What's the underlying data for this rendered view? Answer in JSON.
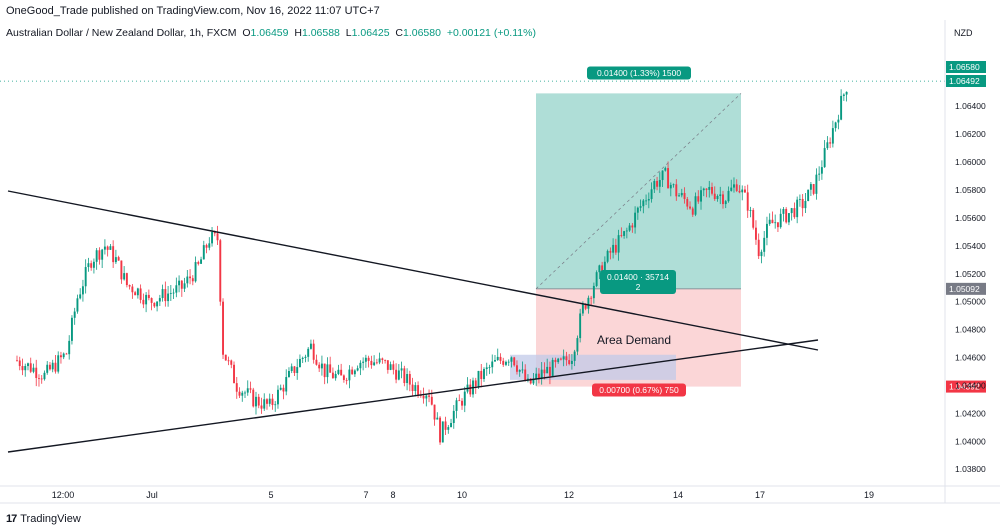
{
  "header": {
    "publisher": "OneGood_Trade published on TradingView.com, Nov 16, 2022 11:07 UTC+7"
  },
  "symbol": {
    "name": "Australian Dollar / New Zealand Dollar, 1h, FXCM",
    "o_label": "O",
    "o_value": "1.06459",
    "h_label": "H",
    "h_value": "1.06588",
    "l_label": "L",
    "l_value": "1.06425",
    "c_label": "C",
    "c_value": "1.06580",
    "change": "+0.00121 (+0.11%)"
  },
  "footer": {
    "brand": "TradingView",
    "logo": "17"
  },
  "colors": {
    "up": "#089981",
    "down": "#f23645",
    "target_zone": "#a6dad3",
    "stop_zone": "#fbd2d3",
    "demand_zone": "#c2cae8",
    "trendline": "#131722",
    "last_price": "#089981",
    "grey_label": "#787b86"
  },
  "chart_data": {
    "type": "candlestick",
    "currency": "NZD",
    "y_ticks": [
      "1.06400",
      "1.06200",
      "1.06000",
      "1.05800",
      "1.05600",
      "1.05400",
      "1.05200",
      "1.05000",
      "1.04800",
      "1.04600",
      "1.04400",
      "1.04200",
      "1.04000",
      "1.03800"
    ],
    "y_tick_values": [
      1.064,
      1.062,
      1.06,
      1.058,
      1.056,
      1.054,
      1.052,
      1.05,
      1.048,
      1.046,
      1.044,
      1.042,
      1.04,
      1.038
    ],
    "ylim": [
      1.0368,
      1.0686
    ],
    "x_ticks": [
      "12:00",
      "Jul",
      "5",
      "7",
      "8",
      "10",
      "12",
      "14",
      "17",
      "19"
    ],
    "price_labels": [
      {
        "text": "1.06580",
        "value": 1.0658,
        "kind": "last"
      },
      {
        "text": "1.06492",
        "value": 1.06492,
        "kind": "entry"
      },
      {
        "text": "1.05092",
        "value": 1.05092,
        "kind": "grey"
      },
      {
        "text": "1.04392",
        "value": 1.04392,
        "kind": "stop"
      }
    ],
    "position": {
      "entry": 1.05092,
      "target": 1.06492,
      "stop": 1.04392,
      "target_label": "0.01400 (1.33%) 1500",
      "stop_label": "0.00700 (0.67%) 750",
      "mid_label_1": "0.01400 · 35714",
      "mid_label_2": "2"
    },
    "demand_zone": {
      "label": "Area Demand",
      "top": 1.0462,
      "bottom": 1.0444
    },
    "trendlines": [
      {
        "name": "descending",
        "from": {
          "bar": 0,
          "price": 1.0572
        },
        "to": {
          "bar": 198,
          "price": 1.0462
        }
      },
      {
        "name": "ascending",
        "from": {
          "bar": 0,
          "price": 1.039
        },
        "to": {
          "bar": 198,
          "price": 1.0469
        }
      }
    ],
    "close_path": [
      [
        0,
        1.0458
      ],
      [
        6,
        1.0452
      ],
      [
        10,
        1.0447
      ],
      [
        14,
        1.0455
      ],
      [
        18,
        1.0463
      ],
      [
        22,
        1.0503
      ],
      [
        27,
        1.053
      ],
      [
        32,
        1.054
      ],
      [
        36,
        1.053
      ],
      [
        40,
        1.0512
      ],
      [
        44,
        1.0508
      ],
      [
        48,
        1.05
      ],
      [
        54,
        1.0505
      ],
      [
        60,
        1.051
      ],
      [
        66,
        1.0525
      ],
      [
        70,
        1.0545
      ],
      [
        73,
        1.0545
      ],
      [
        75,
        1.0465
      ],
      [
        80,
        1.044
      ],
      [
        86,
        1.043
      ],
      [
        92,
        1.0425
      ],
      [
        97,
        1.044
      ],
      [
        102,
        1.0455
      ],
      [
        107,
        1.0468
      ],
      [
        112,
        1.045
      ],
      [
        118,
        1.0445
      ],
      [
        124,
        1.0457
      ],
      [
        128,
        1.0458
      ],
      [
        134,
        1.0455
      ],
      [
        138,
        1.045
      ],
      [
        144,
        1.044
      ],
      [
        150,
        1.0435
      ],
      [
        154,
        1.0405
      ],
      [
        158,
        1.0418
      ],
      [
        162,
        1.043
      ],
      [
        168,
        1.0445
      ],
      [
        174,
        1.0456
      ],
      [
        180,
        1.0462
      ],
      [
        186,
        1.044
      ],
      [
        192,
        1.045
      ],
      [
        198,
        1.0455
      ],
      [
        202,
        1.0462
      ],
      [
        206,
        1.0495
      ],
      [
        210,
        1.0513
      ],
      [
        216,
        1.0535
      ],
      [
        222,
        1.055
      ],
      [
        226,
        1.0565
      ],
      [
        232,
        1.0585
      ],
      [
        236,
        1.059
      ],
      [
        240,
        1.0578
      ],
      [
        246,
        1.0568
      ],
      [
        252,
        1.058
      ],
      [
        258,
        1.0575
      ],
      [
        262,
        1.0585
      ],
      [
        266,
        1.057
      ],
      [
        270,
        1.0537
      ],
      [
        274,
        1.0555
      ],
      [
        280,
        1.0562
      ],
      [
        286,
        1.057
      ],
      [
        290,
        1.0582
      ],
      [
        294,
        1.0605
      ],
      [
        298,
        1.063
      ],
      [
        302,
        1.0655
      ]
    ]
  }
}
